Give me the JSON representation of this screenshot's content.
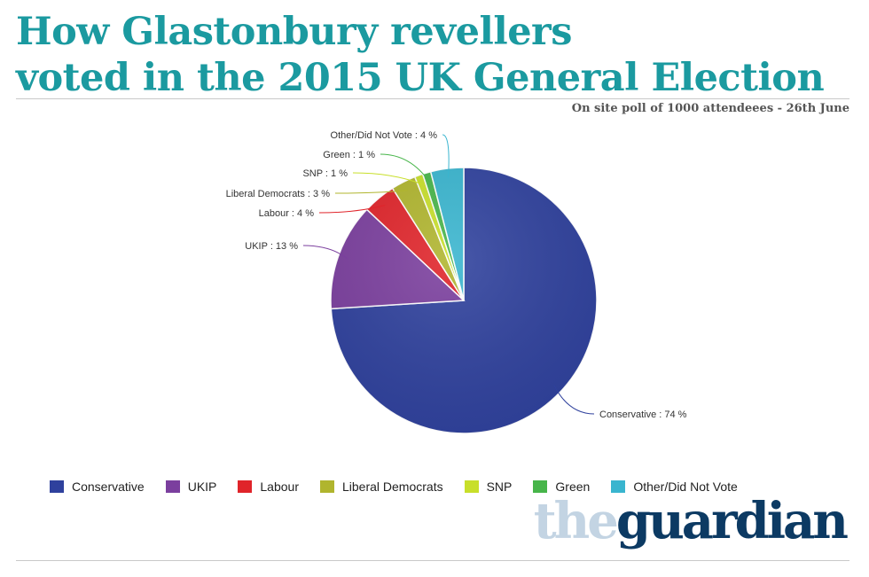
{
  "title_lines": [
    "How Glastonbury revellers",
    "voted in the 2015 UK General Election"
  ],
  "subtitle": "On site poll of 1000 attendeees - 26th June",
  "logo": {
    "the": "the",
    "guardian": "guardian"
  },
  "chart_data": {
    "type": "pie",
    "title": "How Glastonbury revellers voted in the 2015 UK General Election",
    "subtitle": "On site poll of 1000 attendeees - 26th June",
    "unit": "%",
    "legend_position": "bottom",
    "slices": [
      {
        "label": "Conservative",
        "value": 74,
        "color": "#2f419d"
      },
      {
        "label": "UKIP",
        "value": 13,
        "color": "#7b3f9e"
      },
      {
        "label": "Labour",
        "value": 4,
        "color": "#e0242a"
      },
      {
        "label": "Liberal Democrats",
        "value": 3,
        "color": "#b0b52e"
      },
      {
        "label": "SNP",
        "value": 1,
        "color": "#c8df2a"
      },
      {
        "label": "Green",
        "value": 1,
        "color": "#47b54a"
      },
      {
        "label": "Other/Did Not Vote",
        "value": 4,
        "color": "#39b5cf"
      }
    ]
  }
}
